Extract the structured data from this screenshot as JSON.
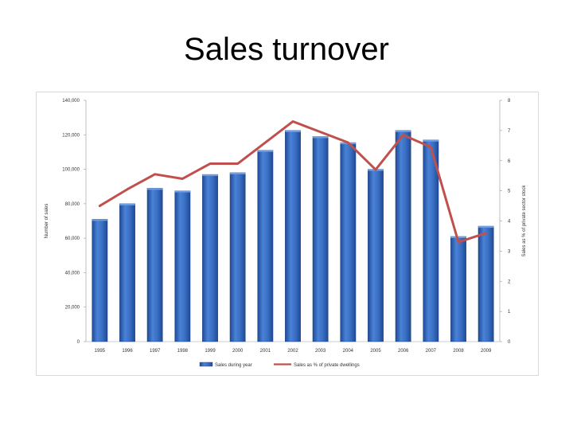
{
  "slide": {
    "title": "Sales turnover"
  },
  "chart_data": {
    "type": "bar",
    "categories": [
      "1995",
      "1996",
      "1997",
      "1998",
      "1999",
      "2000",
      "2001",
      "2002",
      "2003",
      "2004",
      "2005",
      "2006",
      "2007",
      "2008",
      "2009"
    ],
    "series": [
      {
        "name": "Sales during year",
        "kind": "bar",
        "axis": "left",
        "values": [
          71000,
          80000,
          89000,
          87500,
          97000,
          98000,
          111000,
          122500,
          119000,
          115500,
          100000,
          122500,
          117000,
          61000,
          67000
        ]
      },
      {
        "name": "Sales as % of private dwellings",
        "kind": "line",
        "axis": "right",
        "values": [
          4.5,
          5.05,
          5.55,
          5.4,
          5.9,
          5.9,
          6.6,
          7.3,
          6.95,
          6.6,
          5.7,
          6.85,
          6.45,
          3.3,
          3.6
        ]
      }
    ],
    "ylabel_left": "Number of sales",
    "ylabel_right": "Sales as % of private sector stock",
    "ylim_left": [
      0,
      140000
    ],
    "ylim_right": [
      0,
      8
    ],
    "yticks_left": [
      "0",
      "20,000",
      "40,000",
      "60,000",
      "80,000",
      "100,000",
      "120,000",
      "140,000"
    ],
    "yticks_right": [
      "0",
      "1",
      "2",
      "3",
      "4",
      "5",
      "6",
      "7",
      "8"
    ],
    "grid": false,
    "legend_position": "bottom",
    "colors": {
      "bar": "#3a6fc4",
      "bar_dark": "#1f4a94",
      "line": "#c0504d"
    }
  }
}
